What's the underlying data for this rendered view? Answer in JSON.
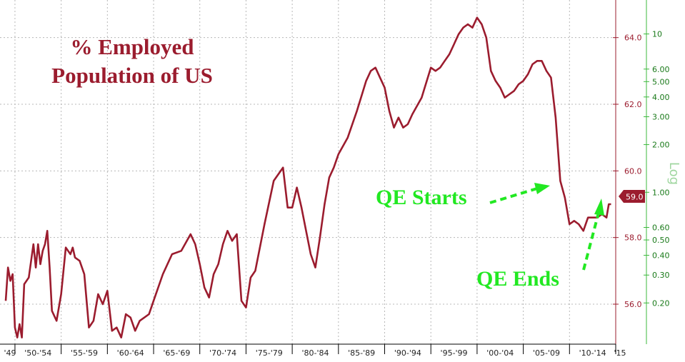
{
  "colors": {
    "series": "#9b1c2e",
    "log_axis": "#3cb83c",
    "annotation": "#22e822",
    "grid": "#b8b8b8",
    "badge_bg": "#9b1c2e",
    "badge_text": "#ffffff"
  },
  "chart_data": {
    "type": "line",
    "title": "% Employed\nPopulation of US",
    "title_lines": [
      "% Employed",
      "Population of US"
    ],
    "xlabel": "",
    "ylabel": "",
    "x_ticks": [
      "'49",
      "'50-'54",
      "'55-'59",
      "'60-'64",
      "'65-'69",
      "'70-'74",
      "'75-'79",
      "'80-'84",
      "'85-'89",
      "'90-'94",
      "'95-'99",
      "'00-'04",
      "'05-'09",
      "'10-'14",
      "'15"
    ],
    "x_range": [
      1949,
      2015
    ],
    "ylim": [
      54.8,
      65.0
    ],
    "y_ticks": [
      56.0,
      58.0,
      60.0,
      62.0,
      64.0
    ],
    "y_tick_labels": [
      "56.0",
      "58.0",
      "60.0",
      "62.0",
      "64.0"
    ],
    "y2_label": "Log",
    "y2_scale": "log",
    "y2_ticks": [
      0.2,
      0.3,
      0.4,
      0.5,
      0.6,
      1.0,
      2.0,
      3.0,
      4.0,
      5.0,
      6.0,
      10
    ],
    "y2_tick_labels": [
      "0.20",
      "0.30",
      "0.40",
      "0.50",
      "0.60",
      "1.00",
      "2.00",
      "3.00",
      "4.00",
      "5.00",
      "6.00",
      "10"
    ],
    "grid": true,
    "last_value_label": "59.0",
    "series": [
      {
        "x": [
          1949.0,
          1949.25,
          1949.5,
          1949.75,
          1950.0,
          1950.25,
          1950.5,
          1950.75,
          1951.0,
          1951.5,
          1952.0,
          1952.25,
          1952.5,
          1952.75,
          1953.0,
          1953.25,
          1953.5,
          1953.75,
          1954.0,
          1954.5,
          1955.0,
          1955.5,
          1956.0,
          1956.25,
          1956.5,
          1957.0,
          1957.5,
          1958.0,
          1958.5,
          1959.0,
          1959.5,
          1960.0,
          1960.5,
          1961.0,
          1961.5,
          1962.0,
          1962.5,
          1963.0,
          1963.5,
          1964.0,
          1964.5,
          1965.0,
          1966.0,
          1967.0,
          1968.0,
          1969.0,
          1969.5,
          1970.0,
          1970.5,
          1971.0,
          1971.5,
          1972.0,
          1972.5,
          1973.0,
          1973.5,
          1974.0,
          1974.5,
          1975.0,
          1975.5,
          1976.0,
          1977.0,
          1978.0,
          1978.5,
          1979.0,
          1979.5,
          1980.0,
          1980.5,
          1981.0,
          1981.5,
          1982.0,
          1982.5,
          1983.0,
          1983.5,
          1984.0,
          1984.5,
          1985.0,
          1986.0,
          1987.0,
          1988.0,
          1988.5,
          1989.0,
          1989.5,
          1990.0,
          1990.5,
          1991.0,
          1991.5,
          1992.0,
          1992.5,
          1993.0,
          1994.0,
          1995.0,
          1995.5,
          1996.0,
          1996.5,
          1997.0,
          1997.5,
          1998.0,
          1998.5,
          1999.0,
          1999.5,
          2000.0,
          2000.5,
          2001.0,
          2001.5,
          2002.0,
          2002.5,
          2003.0,
          2003.5,
          2004.0,
          2004.5,
          2005.0,
          2005.5,
          2006.0,
          2006.5,
          2007.0,
          2007.5,
          2008.0,
          2008.5,
          2009.0,
          2009.5,
          2010.0,
          2010.5,
          2011.0,
          2011.5,
          2012.0,
          2012.5,
          2013.0,
          2013.5,
          2014.0,
          2014.25,
          2014.5
        ],
        "values": [
          56.1,
          57.1,
          56.7,
          56.9,
          55.3,
          55.0,
          55.4,
          55.0,
          56.6,
          56.8,
          57.8,
          57.1,
          57.8,
          57.2,
          57.6,
          57.8,
          58.2,
          57.1,
          55.8,
          55.5,
          56.3,
          57.7,
          57.5,
          57.7,
          57.4,
          57.3,
          56.9,
          55.3,
          55.5,
          56.3,
          56.0,
          56.4,
          55.2,
          55.3,
          55.0,
          55.7,
          55.6,
          55.2,
          55.5,
          55.6,
          55.7,
          56.1,
          56.9,
          57.5,
          57.6,
          58.1,
          57.8,
          57.2,
          56.5,
          56.2,
          56.9,
          57.2,
          57.8,
          58.2,
          57.9,
          58.1,
          56.1,
          55.9,
          56.8,
          57.0,
          58.4,
          59.7,
          59.9,
          60.1,
          58.9,
          58.9,
          59.5,
          58.9,
          58.2,
          57.5,
          57.1,
          58.0,
          59.0,
          59.8,
          60.1,
          60.5,
          61.0,
          61.8,
          62.7,
          63.0,
          63.1,
          62.8,
          62.5,
          61.8,
          61.3,
          61.6,
          61.3,
          61.4,
          61.7,
          62.2,
          63.1,
          63.0,
          63.1,
          63.3,
          63.5,
          63.8,
          64.1,
          64.3,
          64.4,
          64.3,
          64.6,
          64.4,
          64.0,
          63.0,
          62.7,
          62.5,
          62.2,
          62.3,
          62.4,
          62.6,
          62.7,
          62.9,
          63.2,
          63.3,
          63.3,
          63.0,
          62.8,
          61.6,
          59.7,
          59.2,
          58.4,
          58.5,
          58.4,
          58.2,
          58.6,
          58.6,
          58.6,
          58.7,
          58.6,
          59.0,
          59.0
        ]
      }
    ]
  },
  "annotations": {
    "qe_starts": "QE Starts",
    "qe_ends": "QE Ends"
  }
}
